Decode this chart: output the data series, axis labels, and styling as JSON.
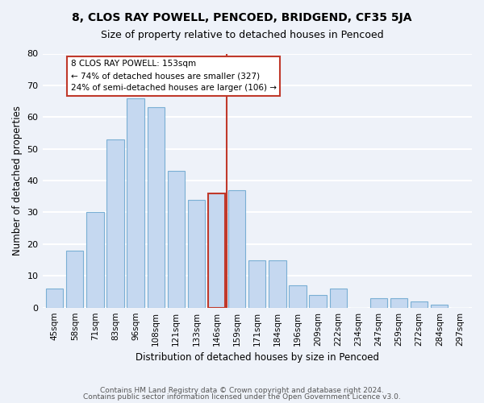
{
  "title": "8, CLOS RAY POWELL, PENCOED, BRIDGEND, CF35 5JA",
  "subtitle": "Size of property relative to detached houses in Pencoed",
  "xlabel": "Distribution of detached houses by size in Pencoed",
  "ylabel": "Number of detached properties",
  "bar_labels": [
    "45sqm",
    "58sqm",
    "71sqm",
    "83sqm",
    "96sqm",
    "108sqm",
    "121sqm",
    "133sqm",
    "146sqm",
    "159sqm",
    "171sqm",
    "184sqm",
    "196sqm",
    "209sqm",
    "222sqm",
    "234sqm",
    "247sqm",
    "259sqm",
    "272sqm",
    "284sqm",
    "297sqm"
  ],
  "bar_values": [
    6,
    18,
    30,
    53,
    66,
    63,
    43,
    34,
    36,
    37,
    15,
    15,
    7,
    4,
    6,
    0,
    3,
    3,
    2,
    1,
    0
  ],
  "bar_color": "#c5d8f0",
  "bar_edge_color": "#7aafd4",
  "highlight_bar_index": 8,
  "highlight_edge_color": "#c0392b",
  "vline_x": 8.5,
  "vline_color": "#c0392b",
  "annotation_title": "8 CLOS RAY POWELL: 153sqm",
  "annotation_line1": "← 74% of detached houses are smaller (327)",
  "annotation_line2": "24% of semi-detached houses are larger (106) →",
  "annotation_box_color": "#ffffff",
  "annotation_box_edge": "#c0392b",
  "ylim": [
    0,
    80
  ],
  "yticks": [
    0,
    10,
    20,
    30,
    40,
    50,
    60,
    70,
    80
  ],
  "footer_line1": "Contains HM Land Registry data © Crown copyright and database right 2024.",
  "footer_line2": "Contains public sector information licensed under the Open Government Licence v3.0.",
  "bg_color": "#eef2f9",
  "grid_color": "#ffffff"
}
